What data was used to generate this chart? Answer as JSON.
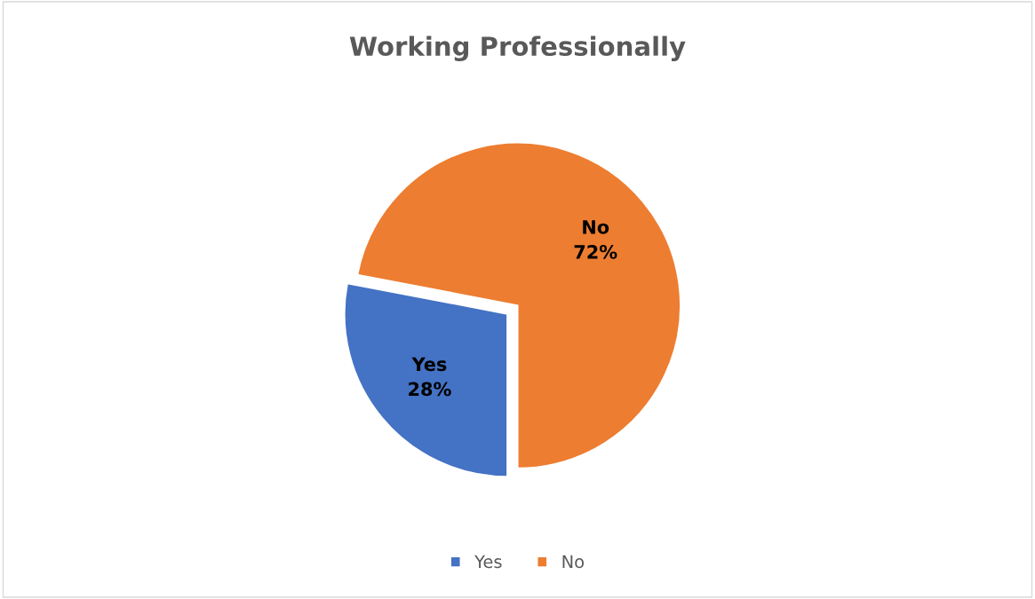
{
  "chart_data": {
    "type": "pie",
    "title": "Working Professionally",
    "categories": [
      "Yes",
      "No"
    ],
    "values": [
      28,
      72
    ],
    "colors": [
      "#4472c4",
      "#ed7d31"
    ],
    "value_labels": [
      "28%",
      "72%"
    ],
    "legend": "bottom"
  }
}
